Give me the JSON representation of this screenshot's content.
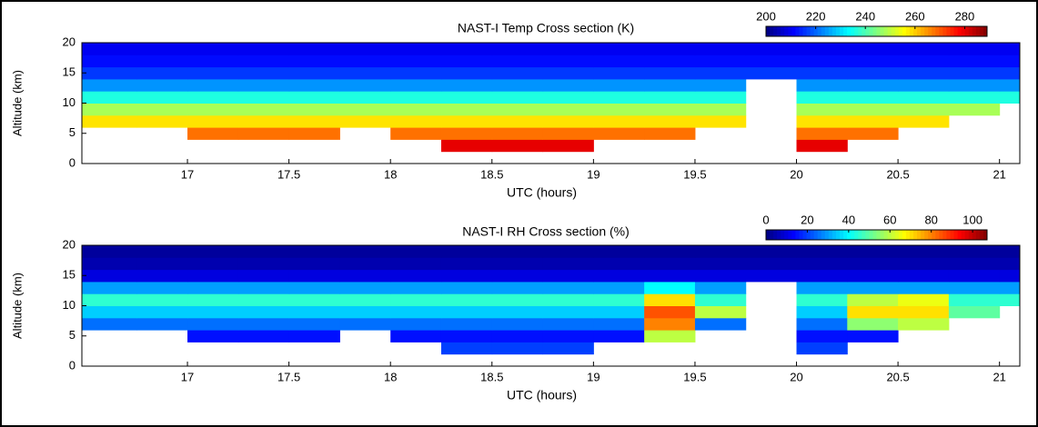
{
  "chart_data": [
    {
      "type": "heatmap",
      "title": "NAST-I Temp Cross section (K)",
      "xlabel": "UTC (hours)",
      "ylabel": "Altitude (km)",
      "colormap": "jet",
      "xlim": [
        16.48,
        21.1
      ],
      "ylim": [
        0,
        20
      ],
      "xticks": [
        17,
        17.5,
        18,
        18.5,
        19,
        19.5,
        20,
        20.5,
        21
      ],
      "yticks": [
        0,
        5,
        10,
        15,
        20
      ],
      "clim": [
        200,
        289
      ],
      "cticks": [
        200,
        220,
        240,
        260,
        280
      ],
      "xbins": [
        16.48,
        16.75,
        17,
        17.25,
        17.5,
        17.75,
        18,
        18.25,
        18.5,
        18.75,
        19,
        19.25,
        19.5,
        19.75,
        20,
        20.25,
        20.5,
        20.75,
        21,
        21.1
      ],
      "ybins": [
        0,
        2,
        4,
        6,
        8,
        10,
        12,
        14,
        16,
        18,
        20
      ],
      "z": [
        [
          null,
          null,
          null,
          null,
          null,
          null,
          null,
          null,
          null,
          null,
          null,
          null,
          null,
          null,
          null,
          null,
          null,
          null,
          null
        ],
        [
          null,
          null,
          null,
          null,
          null,
          null,
          null,
          280,
          280,
          280,
          null,
          null,
          null,
          null,
          280,
          null,
          null,
          null,
          null
        ],
        [
          null,
          null,
          268,
          268,
          268,
          null,
          268,
          268,
          268,
          268,
          268,
          268,
          null,
          null,
          268,
          268,
          null,
          null,
          null
        ],
        [
          258,
          258,
          258,
          258,
          258,
          258,
          258,
          258,
          258,
          258,
          258,
          258,
          258,
          null,
          258,
          258,
          258,
          null,
          null
        ],
        [
          248,
          248,
          248,
          248,
          248,
          248,
          248,
          248,
          248,
          248,
          248,
          248,
          248,
          null,
          248,
          248,
          248,
          248,
          null
        ],
        [
          236,
          236,
          236,
          236,
          236,
          236,
          236,
          236,
          236,
          236,
          236,
          236,
          236,
          null,
          236,
          236,
          236,
          236,
          236
        ],
        [
          224,
          224,
          224,
          224,
          224,
          224,
          224,
          224,
          224,
          224,
          224,
          224,
          224,
          null,
          224,
          224,
          224,
          224,
          224
        ],
        [
          216,
          216,
          216,
          216,
          216,
          216,
          216,
          216,
          216,
          216,
          216,
          216,
          216,
          216,
          216,
          216,
          216,
          216,
          216
        ],
        [
          212,
          212,
          212,
          212,
          212,
          212,
          212,
          212,
          212,
          212,
          212,
          212,
          212,
          212,
          212,
          212,
          212,
          212,
          212
        ],
        [
          210,
          210,
          210,
          210,
          210,
          210,
          210,
          210,
          210,
          210,
          210,
          210,
          210,
          210,
          210,
          210,
          210,
          210,
          210
        ]
      ]
    },
    {
      "type": "heatmap",
      "title": "NAST-I RH Cross section (%)",
      "xlabel": "UTC (hours)",
      "ylabel": "Altitude (km)",
      "colormap": "jet",
      "xlim": [
        16.48,
        21.1
      ],
      "ylim": [
        0,
        20
      ],
      "xticks": [
        17,
        17.5,
        18,
        18.5,
        19,
        19.5,
        20,
        20.5,
        21
      ],
      "yticks": [
        0,
        5,
        10,
        15,
        20
      ],
      "clim": [
        0,
        107
      ],
      "cticks": [
        0,
        20,
        40,
        60,
        80,
        100
      ],
      "xbins": [
        16.48,
        16.75,
        17,
        17.25,
        17.5,
        17.75,
        18,
        18.25,
        18.5,
        18.75,
        19,
        19.25,
        19.5,
        19.75,
        20,
        20.25,
        20.5,
        20.75,
        21,
        21.1
      ],
      "ybins": [
        0,
        2,
        4,
        6,
        8,
        10,
        12,
        14,
        16,
        18,
        20
      ],
      "z": [
        [
          null,
          null,
          null,
          null,
          null,
          null,
          null,
          null,
          null,
          null,
          null,
          null,
          null,
          null,
          null,
          null,
          null,
          null,
          null
        ],
        [
          null,
          null,
          null,
          null,
          null,
          null,
          null,
          20,
          20,
          20,
          null,
          null,
          null,
          null,
          20,
          null,
          null,
          null,
          null
        ],
        [
          null,
          null,
          15,
          15,
          15,
          null,
          15,
          15,
          15,
          15,
          15,
          60,
          null,
          null,
          15,
          15,
          null,
          null,
          null
        ],
        [
          25,
          25,
          25,
          25,
          25,
          25,
          25,
          25,
          25,
          25,
          25,
          80,
          25,
          null,
          25,
          55,
          60,
          null,
          null
        ],
        [
          35,
          35,
          35,
          35,
          35,
          35,
          35,
          35,
          35,
          35,
          35,
          85,
          60,
          null,
          35,
          70,
          70,
          50,
          null
        ],
        [
          45,
          45,
          45,
          45,
          45,
          45,
          45,
          45,
          45,
          45,
          45,
          70,
          45,
          null,
          45,
          60,
          65,
          45,
          45
        ],
        [
          30,
          30,
          30,
          30,
          30,
          30,
          30,
          30,
          30,
          30,
          30,
          40,
          30,
          null,
          30,
          30,
          30,
          30,
          30
        ],
        [
          10,
          10,
          10,
          10,
          10,
          10,
          10,
          10,
          10,
          10,
          10,
          10,
          10,
          10,
          10,
          10,
          10,
          10,
          10
        ],
        [
          5,
          5,
          5,
          5,
          5,
          5,
          5,
          5,
          5,
          5,
          5,
          5,
          5,
          5,
          5,
          5,
          5,
          5,
          5
        ],
        [
          3,
          3,
          3,
          3,
          3,
          3,
          3,
          3,
          3,
          3,
          3,
          3,
          3,
          3,
          3,
          3,
          3,
          3,
          3
        ]
      ]
    }
  ]
}
